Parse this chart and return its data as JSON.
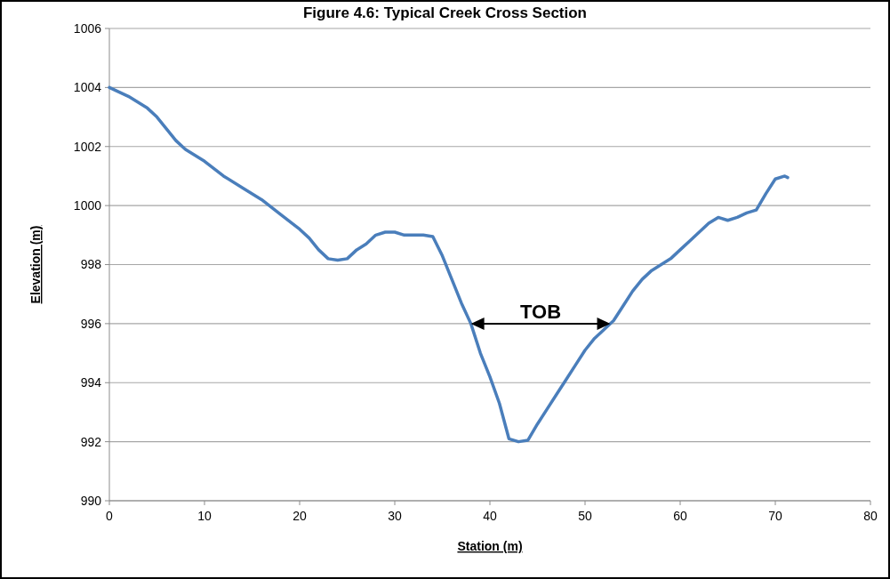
{
  "chart_data": {
    "type": "line",
    "title": "Figure 4.6: Typical Creek Cross Section",
    "xlabel": "Station (m)",
    "ylabel": "Elevation (m)",
    "xlim": [
      0,
      80
    ],
    "xticks": [
      0,
      10,
      20,
      30,
      40,
      50,
      60,
      70,
      80
    ],
    "ylim": [
      990,
      1006
    ],
    "yticks": [
      990,
      992,
      994,
      996,
      998,
      1000,
      1002,
      1004,
      1006
    ],
    "grid": "y",
    "marker": "none",
    "line_style": "solid",
    "annotations": [
      {
        "text": "TOB",
        "x": 38,
        "y": 996
      }
    ],
    "series": [
      {
        "color": "#4a7ebb",
        "x": [
          0,
          2,
          4,
          5,
          6,
          7,
          8,
          10,
          12,
          14,
          16,
          18,
          20,
          21,
          22,
          23,
          24,
          25,
          26,
          27,
          28,
          29,
          30,
          31,
          33,
          34,
          35,
          36,
          37,
          38,
          39,
          40,
          41,
          42,
          43,
          44,
          45,
          46,
          47,
          48,
          49,
          50,
          51,
          52,
          53,
          54,
          55,
          56,
          57,
          58,
          59,
          60,
          61,
          62,
          63,
          64,
          65,
          66,
          67,
          68,
          69,
          70,
          71,
          71.3
        ],
        "values": [
          1004,
          1003.7,
          1003.3,
          1003,
          1002.6,
          1002.2,
          1001.9,
          1001.5,
          1001,
          1000.6,
          1000.2,
          999.7,
          999.2,
          998.9,
          998.5,
          998.2,
          998.15,
          998.2,
          998.5,
          998.7,
          999,
          999.1,
          999.1,
          999,
          999,
          998.95,
          998.3,
          997.5,
          996.7,
          996,
          995,
          994.2,
          993.3,
          992.1,
          992,
          992.05,
          992.6,
          993.1,
          993.6,
          994.1,
          994.6,
          995.1,
          995.5,
          995.8,
          996.1,
          996.6,
          997.1,
          997.5,
          997.8,
          998,
          998.2,
          998.5,
          998.8,
          999.1,
          999.4,
          999.6,
          999.5,
          999.6,
          999.75,
          999.85,
          1000.4,
          1000.9,
          1001,
          1000.95
        ]
      }
    ]
  }
}
